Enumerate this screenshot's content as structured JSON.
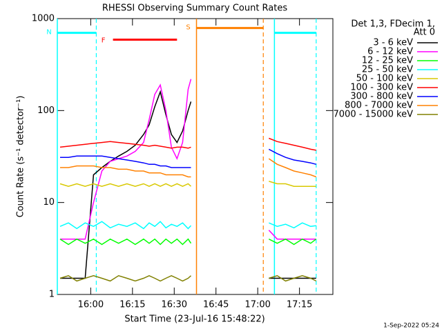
{
  "chart_data": {
    "type": "line",
    "title": "RHESSI Observing Summary Count Rates",
    "xlabel": "Start Time (23-Jul-16 15:48:22)",
    "ylabel": "Count Rate (s⁻¹ detector⁻¹)",
    "footer": "1-Sep-2022 05:24",
    "legend_title": [
      "Det 1,3, FDecim 1,",
      "Att 0"
    ],
    "log_y": true,
    "xlim": [
      "15:48",
      "17:27"
    ],
    "xticks": [
      "16:00",
      "16:15",
      "16:30",
      "16:45",
      "17:00",
      "17:15"
    ],
    "ylim": [
      1,
      1000
    ],
    "yticks": [
      1,
      10,
      100,
      1000
    ],
    "x": [
      "15:49",
      "15:52",
      "15:55",
      "15:58",
      "16:01",
      "16:04",
      "16:07",
      "16:10",
      "16:13",
      "16:16",
      "16:19",
      "16:21",
      "16:23",
      "16:25",
      "16:27",
      "16:29",
      "16:31",
      "16:33",
      "16:35",
      "16:36",
      "16:50",
      "17:04",
      "17:07",
      "17:10",
      "17:13",
      "17:16",
      "17:19",
      "17:21"
    ],
    "series": [
      {
        "name": "3 - 6 keV",
        "color": "#000000",
        "values": [
          1.5,
          1.5,
          1.5,
          1.5,
          20,
          24,
          28,
          32,
          36,
          42,
          55,
          70,
          110,
          160,
          90,
          55,
          45,
          60,
          100,
          125,
          null,
          1.5,
          1.5,
          1.5,
          1.5,
          1.5,
          1.5,
          1.5
        ]
      },
      {
        "name": "6 - 12 keV",
        "color": "#ff00ff",
        "values": [
          4,
          4,
          4,
          4,
          10,
          22,
          28,
          30,
          32,
          36,
          45,
          80,
          150,
          190,
          100,
          40,
          30,
          45,
          170,
          220,
          null,
          5,
          4,
          4,
          4,
          4,
          4,
          4
        ]
      },
      {
        "name": "12 - 25 keV",
        "color": "#00ff00",
        "values": [
          4,
          3.5,
          4,
          3.6,
          4,
          3.5,
          4,
          3.6,
          4,
          3.5,
          4,
          3.6,
          4,
          3.5,
          4,
          3.6,
          4,
          3.5,
          4,
          3.6,
          null,
          4,
          3.6,
          4,
          3.5,
          4,
          3.6,
          4
        ]
      },
      {
        "name": "25 - 50 keV",
        "color": "#00ffff",
        "values": [
          5.5,
          6,
          5.2,
          6,
          5.5,
          6.2,
          5.3,
          5.8,
          5.5,
          6,
          5.2,
          6,
          5.5,
          6.2,
          5.3,
          5.8,
          5.5,
          6,
          5.2,
          5.6,
          null,
          6,
          5.5,
          5.8,
          5.3,
          6,
          5.5,
          5.6
        ]
      },
      {
        "name": "50 - 100 keV",
        "color": "#d8c800",
        "values": [
          16,
          15,
          16,
          15,
          16,
          15,
          16,
          15,
          16,
          15,
          16,
          15,
          16,
          15,
          16,
          15,
          16,
          15,
          16,
          15,
          null,
          17,
          16,
          16,
          15,
          15,
          15,
          15
        ]
      },
      {
        "name": "100 - 300 keV",
        "color": "#ff0000",
        "values": [
          40,
          41,
          42,
          43,
          44,
          45,
          46,
          45,
          44,
          43,
          42,
          41,
          42,
          41,
          40,
          39,
          40,
          40,
          39,
          40,
          null,
          50,
          46,
          44,
          42,
          40,
          38,
          37
        ]
      },
      {
        "name": "300 - 800 keV",
        "color": "#0000ff",
        "values": [
          31,
          31,
          32,
          32,
          32,
          32,
          31,
          30,
          29,
          28,
          27,
          26,
          26,
          25,
          25,
          24,
          24,
          24,
          24,
          24,
          null,
          38,
          34,
          31,
          29,
          28,
          27,
          26
        ]
      },
      {
        "name": "800 - 7000 keV",
        "color": "#ff8000",
        "values": [
          24,
          24,
          25,
          25,
          25,
          24,
          24,
          23,
          23,
          22,
          22,
          21,
          21,
          21,
          20,
          20,
          20,
          20,
          19,
          19,
          null,
          30,
          26,
          24,
          22,
          21,
          20,
          19
        ]
      },
      {
        "name": "7000 - 15000 keV",
        "color": "#808000",
        "values": [
          1.5,
          1.6,
          1.4,
          1.5,
          1.6,
          1.5,
          1.4,
          1.6,
          1.5,
          1.4,
          1.5,
          1.6,
          1.5,
          1.4,
          1.5,
          1.6,
          1.5,
          1.4,
          1.5,
          1.6,
          null,
          1.5,
          1.6,
          1.4,
          1.5,
          1.6,
          1.5,
          1.4
        ]
      }
    ],
    "flags": [
      {
        "label": "N",
        "color": "#00ffff",
        "start": "15:48",
        "end": "16:02",
        "level": 700,
        "bounds": true
      },
      {
        "color": "#00ffff",
        "start": "17:06",
        "end": "17:21",
        "level": 700,
        "bounds": true
      },
      {
        "label": "F",
        "color": "#ff0000",
        "start": "16:08",
        "end": "16:31",
        "level": 590,
        "bounds": false
      },
      {
        "label": "S",
        "color": "#ff8000",
        "start": "16:38",
        "end": "17:02",
        "level": 790,
        "bounds": true
      }
    ]
  }
}
